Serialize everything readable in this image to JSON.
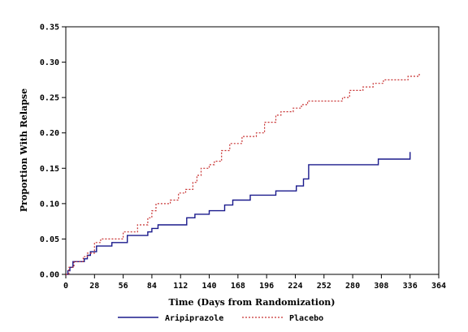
{
  "chart_data": {
    "type": "line",
    "subtype": "step",
    "title": "",
    "xlabel": "Time (Days from Randomization)",
    "ylabel": "Proportion With Relapse",
    "xlim": [
      0,
      364
    ],
    "ylim": [
      0,
      0.35
    ],
    "x_ticks": [
      0,
      28,
      56,
      84,
      112,
      140,
      168,
      196,
      224,
      252,
      280,
      308,
      336,
      364
    ],
    "y_ticks": [
      0.0,
      0.05,
      0.1,
      0.15,
      0.2,
      0.25,
      0.3,
      0.35
    ],
    "y_tick_labels": [
      "0.00",
      "0.05",
      "0.10",
      "0.15",
      "0.20",
      "0.25",
      "0.30",
      "0.35"
    ],
    "grid": false,
    "legend_position": "bottom",
    "series": [
      {
        "name": "Aripiprazole",
        "color": "#1a1a8c",
        "style": "solid",
        "points": [
          [
            0,
            0
          ],
          [
            2,
            0.005
          ],
          [
            4,
            0.01
          ],
          [
            7,
            0.018
          ],
          [
            16,
            0.018
          ],
          [
            18,
            0.022
          ],
          [
            21,
            0.027
          ],
          [
            24,
            0.032
          ],
          [
            30,
            0.04
          ],
          [
            45,
            0.045
          ],
          [
            60,
            0.055
          ],
          [
            80,
            0.06
          ],
          [
            84,
            0.065
          ],
          [
            90,
            0.07
          ],
          [
            118,
            0.08
          ],
          [
            126,
            0.085
          ],
          [
            140,
            0.09
          ],
          [
            155,
            0.098
          ],
          [
            163,
            0.105
          ],
          [
            180,
            0.112
          ],
          [
            205,
            0.118
          ],
          [
            225,
            0.125
          ],
          [
            232,
            0.135
          ],
          [
            237,
            0.155
          ],
          [
            305,
            0.163
          ],
          [
            336,
            0.173
          ]
        ]
      },
      {
        "name": "Placebo",
        "color": "#c83232",
        "style": "dotted",
        "points": [
          [
            0,
            0
          ],
          [
            3,
            0.01
          ],
          [
            8,
            0.018
          ],
          [
            17,
            0.025
          ],
          [
            21,
            0.03
          ],
          [
            28,
            0.045
          ],
          [
            34,
            0.05
          ],
          [
            56,
            0.06
          ],
          [
            70,
            0.07
          ],
          [
            80,
            0.08
          ],
          [
            84,
            0.09
          ],
          [
            88,
            0.1
          ],
          [
            102,
            0.105
          ],
          [
            110,
            0.115
          ],
          [
            117,
            0.12
          ],
          [
            124,
            0.13
          ],
          [
            128,
            0.14
          ],
          [
            132,
            0.15
          ],
          [
            140,
            0.155
          ],
          [
            145,
            0.16
          ],
          [
            152,
            0.175
          ],
          [
            160,
            0.185
          ],
          [
            172,
            0.195
          ],
          [
            186,
            0.2
          ],
          [
            194,
            0.215
          ],
          [
            205,
            0.225
          ],
          [
            210,
            0.23
          ],
          [
            222,
            0.235
          ],
          [
            230,
            0.24
          ],
          [
            236,
            0.245
          ],
          [
            270,
            0.25
          ],
          [
            277,
            0.26
          ],
          [
            290,
            0.265
          ],
          [
            300,
            0.27
          ],
          [
            310,
            0.275
          ],
          [
            334,
            0.28
          ],
          [
            345,
            0.285
          ]
        ]
      }
    ]
  }
}
